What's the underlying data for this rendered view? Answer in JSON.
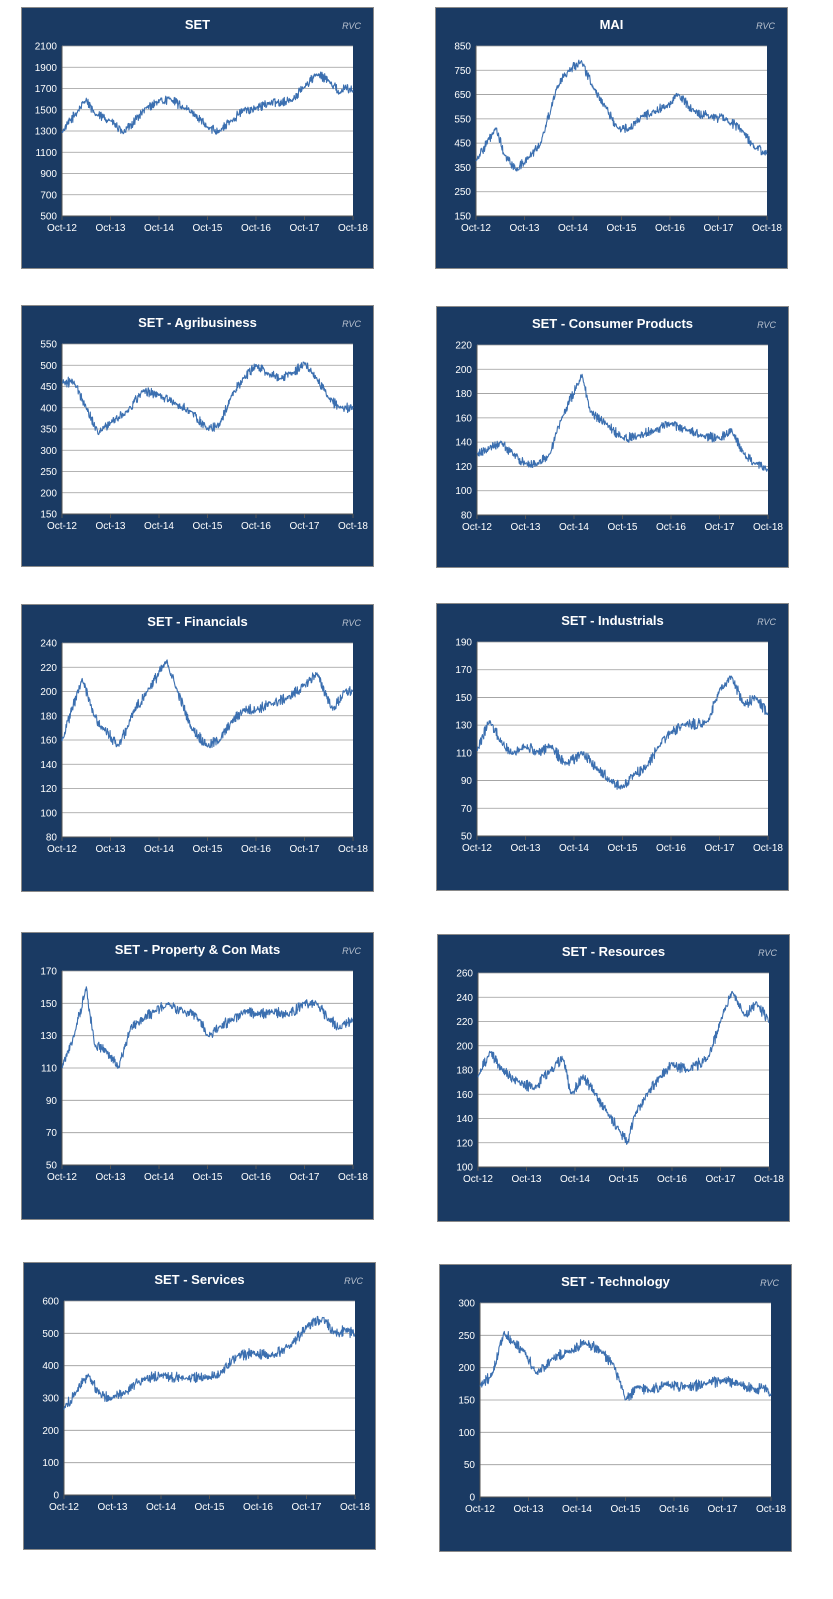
{
  "watermark": "RVC",
  "colors": {
    "panel_background": "#1a3a63",
    "plot_background": "#ffffff",
    "series_line": "#3b6fb0",
    "gridline": "#9a9a9a",
    "text": "#ffffff"
  },
  "chart_data": [
    {
      "type": "line",
      "title": "SET",
      "xlabel": "",
      "ylabel": "",
      "x_ticks": [
        "Oct-12",
        "Oct-13",
        "Oct-14",
        "Oct-15",
        "Oct-16",
        "Oct-17",
        "Oct-18"
      ],
      "y_ticks": [
        500,
        700,
        900,
        1100,
        1300,
        1500,
        1700,
        1900,
        2100
      ],
      "ylim": [
        500,
        2100
      ],
      "grid": true,
      "legend": "none",
      "x": [
        "Oct-12",
        "Apr-13",
        "Jun-13",
        "Oct-13",
        "Jan-14",
        "Jul-14",
        "Oct-14",
        "Jan-15",
        "Apr-15",
        "Jul-15",
        "Oct-15",
        "Jan-16",
        "Apr-16",
        "Jul-16",
        "Oct-16",
        "Jan-17",
        "Jul-17",
        "Oct-17",
        "Jan-18",
        "Apr-18",
        "Jul-18",
        "Aug-18",
        "Oct-18"
      ],
      "values": [
        1290,
        1600,
        1460,
        1400,
        1280,
        1520,
        1580,
        1600,
        1520,
        1450,
        1330,
        1300,
        1400,
        1500,
        1510,
        1560,
        1590,
        1720,
        1830,
        1780,
        1650,
        1720,
        1680
      ]
    },
    {
      "type": "line",
      "title": "MAI",
      "xlabel": "",
      "ylabel": "",
      "x_ticks": [
        "Oct-12",
        "Oct-13",
        "Oct-14",
        "Oct-15",
        "Oct-16",
        "Oct-17",
        "Oct-18"
      ],
      "y_ticks": [
        150,
        250,
        350,
        450,
        550,
        650,
        750,
        850
      ],
      "ylim": [
        150,
        850
      ],
      "grid": true,
      "legend": "none",
      "x": [
        "Oct-12",
        "Mar-13",
        "May-13",
        "Aug-13",
        "Nov-13",
        "Feb-14",
        "Jun-14",
        "Sep-14",
        "Dec-14",
        "Mar-15",
        "Jun-15",
        "Sep-15",
        "Dec-15",
        "Mar-16",
        "Jun-16",
        "Sep-16",
        "Dec-16",
        "Apr-17",
        "Aug-17",
        "Dec-17",
        "Apr-18",
        "Jul-18",
        "Oct-18"
      ],
      "values": [
        380,
        510,
        400,
        340,
        390,
        450,
        680,
        750,
        790,
        680,
        600,
        510,
        510,
        560,
        580,
        600,
        650,
        580,
        560,
        550,
        500,
        430,
        410
      ]
    },
    {
      "type": "line",
      "title": "SET - Agribusiness",
      "xlabel": "",
      "ylabel": "",
      "x_ticks": [
        "Oct-12",
        "Oct-13",
        "Oct-14",
        "Oct-15",
        "Oct-16",
        "Oct-17",
        "Oct-18"
      ],
      "y_ticks": [
        150,
        200,
        250,
        300,
        350,
        400,
        450,
        500,
        550
      ],
      "ylim": [
        150,
        550
      ],
      "grid": true,
      "legend": "none",
      "x": [
        "Oct-12",
        "Jan-13",
        "Apr-13",
        "Jul-13",
        "Oct-13",
        "Feb-14",
        "Jun-14",
        "Oct-14",
        "Feb-15",
        "Jun-15",
        "Oct-15",
        "Jan-16",
        "Apr-16",
        "Jul-16",
        "Oct-16",
        "Jan-17",
        "Apr-17",
        "Jul-17",
        "Oct-17",
        "Jan-18",
        "Apr-18",
        "Jul-18",
        "Oct-18"
      ],
      "values": [
        460,
        460,
        400,
        340,
        365,
        390,
        440,
        430,
        410,
        390,
        350,
        360,
        430,
        470,
        500,
        480,
        470,
        480,
        505,
        470,
        420,
        400,
        400
      ]
    },
    {
      "type": "line",
      "title": "SET - Consumer Products",
      "xlabel": "",
      "ylabel": "",
      "x_ticks": [
        "Oct-12",
        "Oct-13",
        "Oct-14",
        "Oct-15",
        "Oct-16",
        "Oct-17",
        "Oct-18"
      ],
      "y_ticks": [
        80,
        100,
        120,
        140,
        160,
        180,
        200,
        220
      ],
      "ylim": [
        80,
        220
      ],
      "grid": true,
      "legend": "none",
      "x": [
        "Oct-12",
        "Jan-13",
        "Apr-13",
        "Jul-13",
        "Oct-13",
        "Jan-14",
        "Apr-14",
        "Jul-14",
        "Dec-14",
        "Feb-15",
        "Jun-15",
        "Oct-15",
        "Feb-16",
        "Jun-16",
        "Oct-16",
        "Feb-17",
        "Jun-17",
        "Oct-17",
        "Jan-18",
        "Apr-18",
        "Jul-18",
        "Oct-18"
      ],
      "values": [
        130,
        135,
        140,
        130,
        122,
        122,
        130,
        160,
        196,
        165,
        155,
        143,
        145,
        150,
        155,
        150,
        145,
        143,
        150,
        130,
        122,
        117
      ]
    },
    {
      "type": "line",
      "title": "SET - Financials",
      "xlabel": "",
      "ylabel": "",
      "x_ticks": [
        "Oct-12",
        "Oct-13",
        "Oct-14",
        "Oct-15",
        "Oct-16",
        "Oct-17",
        "Oct-18"
      ],
      "y_ticks": [
        80,
        100,
        120,
        140,
        160,
        180,
        200,
        220,
        240
      ],
      "ylim": [
        80,
        240
      ],
      "grid": true,
      "legend": "none",
      "x": [
        "Oct-12",
        "Mar-13",
        "Jun-13",
        "Aug-13",
        "Dec-13",
        "Apr-14",
        "Jul-14",
        "Dec-14",
        "Feb-15",
        "Jun-15",
        "Oct-15",
        "Jan-16",
        "Apr-16",
        "Jul-16",
        "Oct-16",
        "Feb-17",
        "Jun-17",
        "Oct-17",
        "Jan-18",
        "May-18",
        "Aug-18",
        "Oct-18"
      ],
      "values": [
        160,
        210,
        180,
        170,
        155,
        185,
        200,
        225,
        205,
        170,
        155,
        160,
        175,
        185,
        185,
        190,
        195,
        205,
        215,
        185,
        200,
        200
      ]
    },
    {
      "type": "line",
      "title": "SET - Industrials",
      "xlabel": "",
      "ylabel": "",
      "x_ticks": [
        "Oct-12",
        "Oct-13",
        "Oct-14",
        "Oct-15",
        "Oct-16",
        "Oct-17",
        "Oct-18"
      ],
      "y_ticks": [
        50,
        70,
        90,
        110,
        130,
        150,
        170,
        190
      ],
      "ylim": [
        50,
        190
      ],
      "grid": true,
      "legend": "none",
      "x": [
        "Oct-12",
        "Jan-13",
        "Apr-13",
        "Jul-13",
        "Oct-13",
        "Jan-14",
        "Apr-14",
        "Aug-14",
        "Dec-14",
        "Apr-15",
        "Jul-15",
        "Oct-15",
        "Jan-16",
        "Apr-16",
        "Jul-16",
        "Oct-16",
        "Jan-17",
        "Jul-17",
        "Oct-17",
        "Jan-18",
        "Apr-18",
        "Jul-18",
        "Oct-18"
      ],
      "values": [
        112,
        133,
        118,
        110,
        115,
        110,
        115,
        102,
        110,
        98,
        90,
        85,
        95,
        100,
        115,
        125,
        130,
        132,
        155,
        165,
        145,
        150,
        138
      ]
    },
    {
      "type": "line",
      "title": "SET - Property & Con Mats",
      "xlabel": "",
      "ylabel": "",
      "x_ticks": [
        "Oct-12",
        "Oct-13",
        "Oct-14",
        "Oct-15",
        "Oct-16",
        "Oct-17",
        "Oct-18"
      ],
      "y_ticks": [
        50,
        70,
        90,
        110,
        130,
        150,
        170
      ],
      "ylim": [
        50,
        170
      ],
      "grid": true,
      "legend": "none",
      "x": [
        "Oct-12",
        "Jan-13",
        "Apr-13",
        "Jun-13",
        "Sep-13",
        "Dec-13",
        "Mar-14",
        "Jun-14",
        "Sep-14",
        "Dec-14",
        "Apr-15",
        "Aug-15",
        "Oct-15",
        "Jan-16",
        "Apr-16",
        "Jul-16",
        "Oct-16",
        "Feb-17",
        "Jun-17",
        "Oct-17",
        "Jan-18",
        "Apr-18",
        "Jul-18",
        "Oct-18"
      ],
      "values": [
        110,
        130,
        160,
        125,
        120,
        110,
        135,
        140,
        145,
        150,
        145,
        140,
        130,
        135,
        140,
        145,
        143,
        145,
        143,
        150,
        150,
        140,
        135,
        140
      ]
    },
    {
      "type": "line",
      "title": "SET - Resources",
      "xlabel": "",
      "ylabel": "",
      "x_ticks": [
        "Oct-12",
        "Oct-13",
        "Oct-14",
        "Oct-15",
        "Oct-16",
        "Oct-17",
        "Oct-18"
      ],
      "y_ticks": [
        100,
        120,
        140,
        160,
        180,
        200,
        220,
        240,
        260
      ],
      "ylim": [
        100,
        260
      ],
      "grid": true,
      "legend": "none",
      "x": [
        "Oct-12",
        "Jan-13",
        "Apr-13",
        "Aug-13",
        "Dec-13",
        "Apr-14",
        "Jul-14",
        "Sep-14",
        "Dec-14",
        "Mar-15",
        "Jun-15",
        "Sep-15",
        "Nov-15",
        "Jan-16",
        "Apr-16",
        "Jul-16",
        "Oct-16",
        "Feb-17",
        "Jul-17",
        "Oct-17",
        "Jan-18",
        "Apr-18",
        "Jul-18",
        "Oct-18"
      ],
      "values": [
        175,
        195,
        180,
        170,
        165,
        180,
        190,
        160,
        175,
        160,
        145,
        130,
        120,
        145,
        160,
        175,
        185,
        180,
        190,
        220,
        245,
        225,
        235,
        220
      ]
    },
    {
      "type": "line",
      "title": "SET - Services",
      "xlabel": "",
      "ylabel": "",
      "x_ticks": [
        "Oct-12",
        "Oct-13",
        "Oct-14",
        "Oct-15",
        "Oct-16",
        "Oct-17",
        "Oct-18"
      ],
      "y_ticks": [
        0,
        100,
        200,
        300,
        400,
        500,
        600
      ],
      "ylim": [
        0,
        600
      ],
      "grid": true,
      "legend": "none",
      "x": [
        "Oct-12",
        "Jan-13",
        "Apr-13",
        "Jul-13",
        "Oct-13",
        "Jan-14",
        "Jun-14",
        "Oct-14",
        "Apr-15",
        "Oct-15",
        "Jan-16",
        "May-16",
        "Sep-16",
        "Jan-17",
        "Jun-17",
        "Oct-17",
        "Feb-18",
        "May-18",
        "Aug-18",
        "Oct-18"
      ],
      "values": [
        265,
        320,
        370,
        310,
        300,
        315,
        360,
        370,
        360,
        365,
        380,
        430,
        440,
        430,
        460,
        520,
        545,
        500,
        510,
        495
      ]
    },
    {
      "type": "line",
      "title": "SET - Technology",
      "xlabel": "",
      "ylabel": "",
      "x_ticks": [
        "Oct-12",
        "Oct-13",
        "Oct-14",
        "Oct-15",
        "Oct-16",
        "Oct-17",
        "Oct-18"
      ],
      "y_ticks": [
        0,
        50,
        100,
        150,
        200,
        250,
        300
      ],
      "ylim": [
        0,
        300
      ],
      "grid": true,
      "legend": "none",
      "x": [
        "Oct-12",
        "Jan-13",
        "Apr-13",
        "Jun-13",
        "Sep-13",
        "Dec-13",
        "Apr-14",
        "Aug-14",
        "Dec-14",
        "Apr-15",
        "Jul-15",
        "Oct-15",
        "Jan-16",
        "Apr-16",
        "Aug-16",
        "Jan-17",
        "Jun-17",
        "Oct-17",
        "Feb-18",
        "Jun-18",
        "Aug-18",
        "Oct-18"
      ],
      "values": [
        170,
        190,
        255,
        240,
        225,
        190,
        215,
        225,
        240,
        225,
        205,
        150,
        170,
        165,
        175,
        170,
        175,
        180,
        175,
        165,
        170,
        160
      ]
    }
  ]
}
